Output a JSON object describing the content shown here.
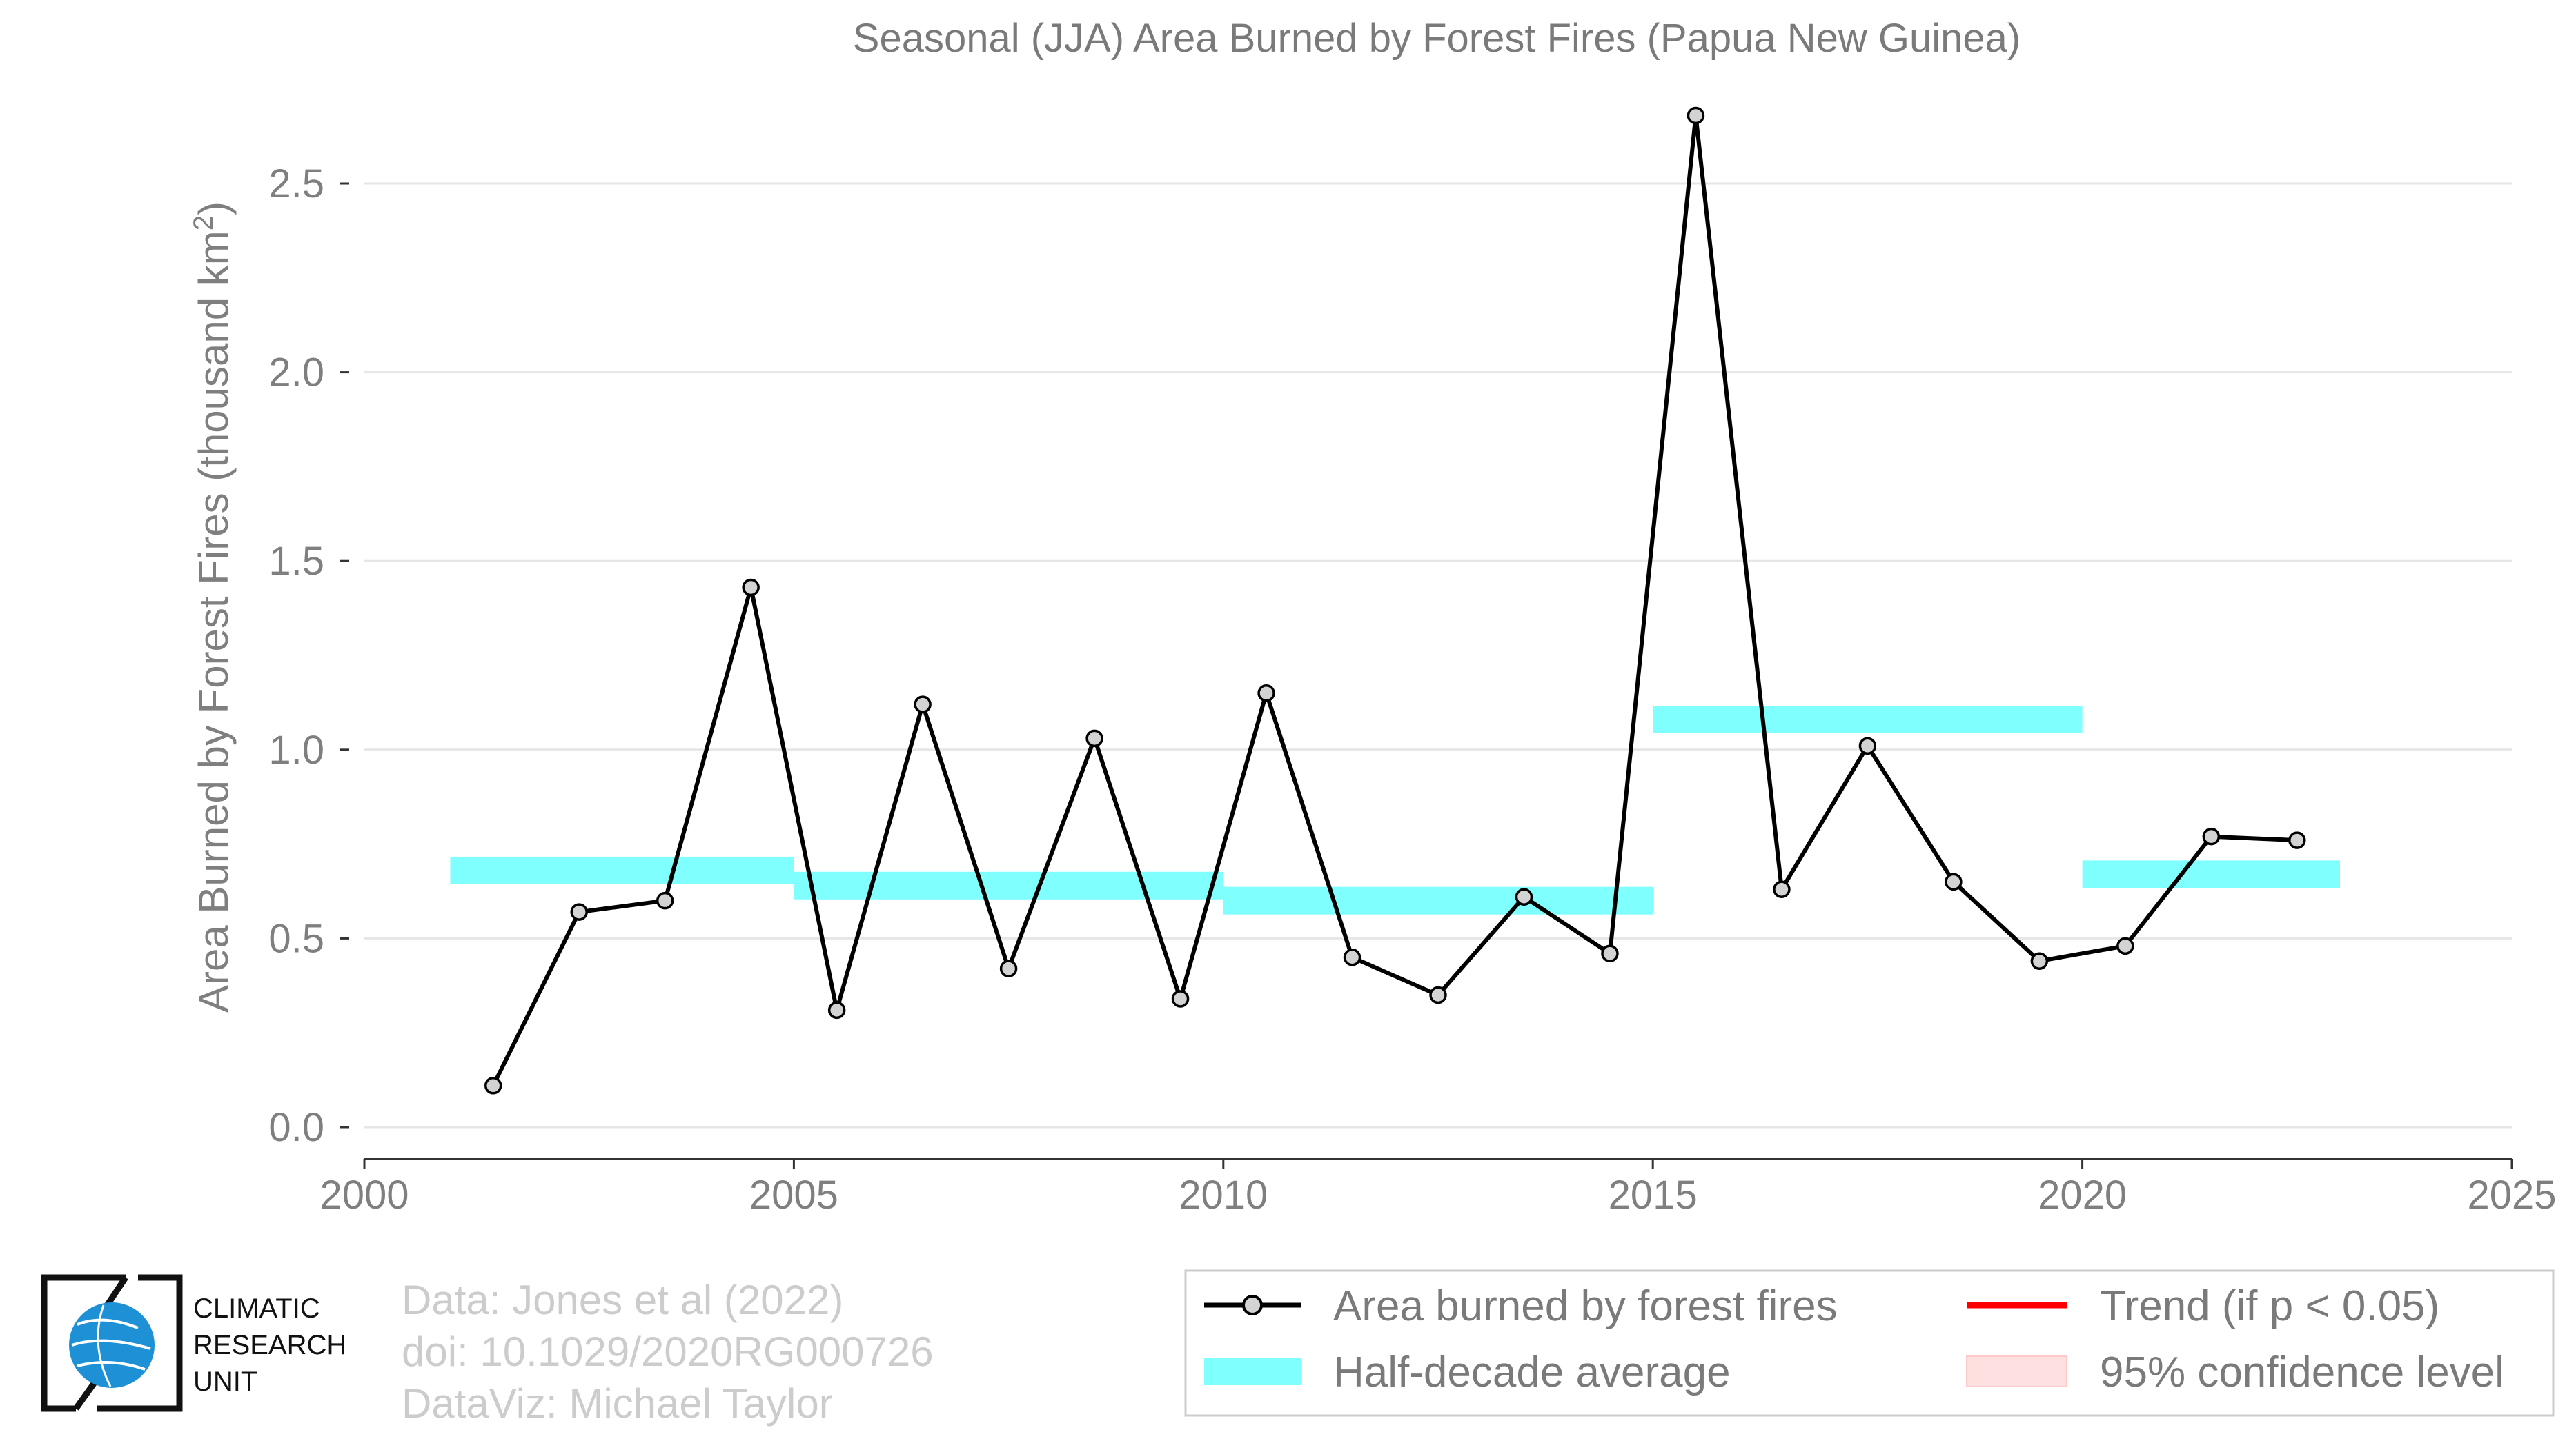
{
  "chart_data": {
    "type": "line",
    "title": "Seasonal (JJA) Area Burned by Forest Fires (Papua New Guinea)",
    "ylabel": "Area Burned by Forest Fires (thousand km",
    "ylabel_superscript": "2",
    "ylabel_suffix": ")",
    "xlim": [
      2000,
      2025
    ],
    "ylim": [
      0.0,
      2.7
    ],
    "x_ticks": [
      "2000",
      "2005",
      "2010",
      "2015",
      "2020",
      "2025"
    ],
    "x_tick_values": [
      2000,
      2005,
      2010,
      2015,
      2020,
      2025
    ],
    "y_ticks": [
      "0.0",
      "0.5",
      "1.0",
      "1.5",
      "2.0",
      "2.5"
    ],
    "y_tick_values": [
      0.0,
      0.5,
      1.0,
      1.5,
      2.0,
      2.5
    ],
    "grid": "horizontal",
    "series": [
      {
        "name": "Area burned by forest fires",
        "color": "#000000",
        "x": [
          2001.5,
          2002.5,
          2003.5,
          2004.5,
          2005.5,
          2006.5,
          2007.5,
          2008.5,
          2009.5,
          2010.5,
          2011.5,
          2012.5,
          2013.5,
          2014.5,
          2015.5,
          2016.5,
          2017.5,
          2018.5,
          2019.5,
          2020.5,
          2021.5,
          2022.5
        ],
        "y": [
          0.11,
          0.57,
          0.6,
          1.43,
          0.31,
          1.12,
          0.42,
          1.03,
          0.34,
          1.15,
          0.45,
          0.35,
          0.61,
          0.46,
          2.68,
          0.63,
          1.01,
          0.65,
          0.44,
          0.48,
          0.77,
          0.76
        ]
      }
    ],
    "half_decade_average": {
      "name": "Half-decade average",
      "color": "#80ffff",
      "segments": [
        {
          "x0": 2001,
          "x1": 2005,
          "y": 0.68
        },
        {
          "x0": 2005,
          "x1": 2010,
          "y": 0.64
        },
        {
          "x0": 2010,
          "x1": 2015,
          "y": 0.6
        },
        {
          "x0": 2015,
          "x1": 2020,
          "y": 1.08
        },
        {
          "x0": 2020,
          "x1": 2023,
          "y": 0.67
        }
      ]
    },
    "legend": {
      "placement": "bottom-right",
      "items": [
        {
          "label": "Area burned by forest fires",
          "type": "line-marker"
        },
        {
          "label": "Trend (if p < 0.05)",
          "type": "line",
          "color": "#ff0000"
        },
        {
          "label": "Half-decade average",
          "type": "band",
          "color": "#80ffff"
        },
        {
          "label": "95% confidence level",
          "type": "band",
          "color": "#ffe0e0"
        }
      ]
    }
  },
  "credits": [
    "Data: Jones et al (2022)",
    "doi: 10.1029/2020RG000726",
    "DataViz: Michael Taylor"
  ],
  "logo": {
    "icon": "globe-icon",
    "lines": [
      "CLIMATIC",
      "RESEARCH",
      "UNIT"
    ]
  }
}
